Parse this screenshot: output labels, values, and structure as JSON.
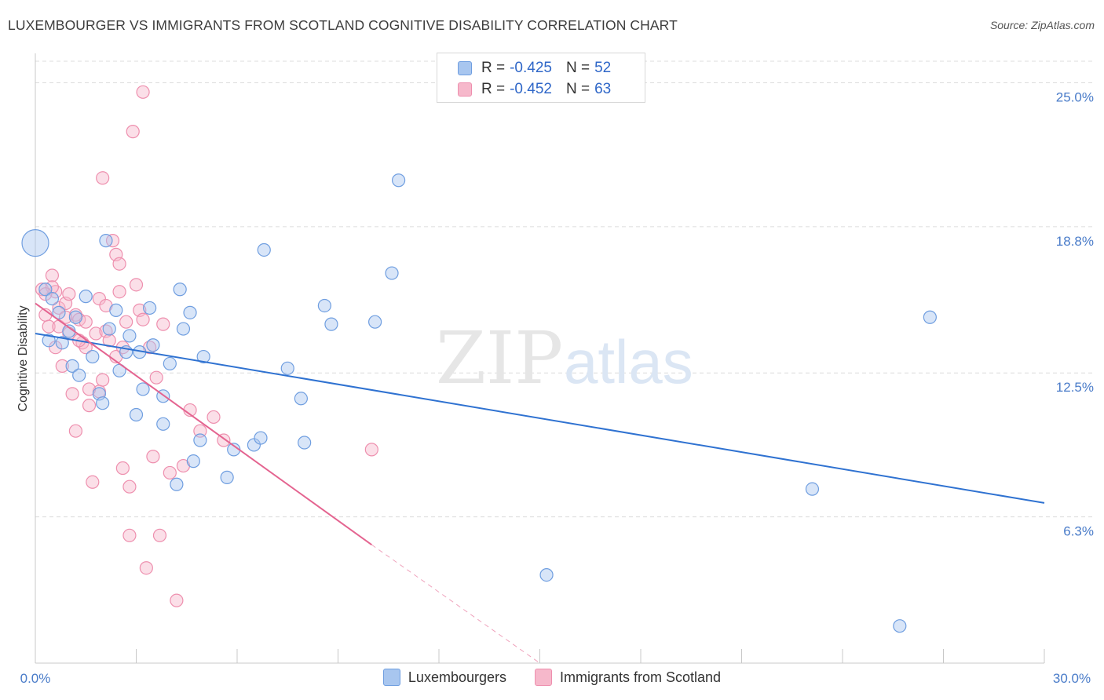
{
  "title": "LUXEMBOURGER VS IMMIGRANTS FROM SCOTLAND COGNITIVE DISABILITY CORRELATION CHART",
  "source": "Source: ZipAtlas.com",
  "watermark": {
    "zip": "ZIP",
    "atlas": "atlas"
  },
  "legend_top": {
    "rows": [
      {
        "r_label": "R =",
        "r_value": "-0.425",
        "n_label": "N =",
        "n_value": "52"
      },
      {
        "r_label": "R =",
        "r_value": "-0.452",
        "n_label": "N =",
        "n_value": "63"
      }
    ]
  },
  "colors": {
    "blue_fill": "#a8c6ef",
    "blue_stroke": "#6f9ee0",
    "blue_line": "#2f72d1",
    "pink_fill": "#f6b8cb",
    "pink_stroke": "#ee8fae",
    "pink_line": "#e46490",
    "grid": "#dcdcdc",
    "axis_text": "#4a7cc9"
  },
  "chart_data": {
    "type": "scatter",
    "title": "LUXEMBOURGER VS IMMIGRANTS FROM SCOTLAND COGNITIVE DISABILITY CORRELATION CHART",
    "xlabel": "",
    "ylabel": "Cognitive Disability",
    "xlim": [
      0,
      30
    ],
    "ylim": [
      0,
      26.2
    ],
    "x_tick_labels": [
      "0.0%",
      "30.0%"
    ],
    "y_ticks": [
      6.3,
      12.5,
      18.8,
      25.0
    ],
    "y_tick_labels": [
      "6.3%",
      "12.5%",
      "18.8%",
      "25.0%"
    ],
    "grid": "horizontal dashed",
    "legend_position": "top-center and bottom",
    "series": [
      {
        "name": "Luxembourgers",
        "r": -0.425,
        "n": 52,
        "trend": {
          "x0": 0.0,
          "y0": 14.2,
          "x1": 30.0,
          "y1": 6.9
        },
        "points": [
          [
            0.0,
            18.1
          ],
          [
            0.3,
            16.1
          ],
          [
            0.5,
            15.7
          ],
          [
            0.4,
            13.9
          ],
          [
            0.7,
            15.1
          ],
          [
            0.8,
            13.8
          ],
          [
            1.0,
            14.3
          ],
          [
            1.1,
            12.8
          ],
          [
            1.3,
            12.4
          ],
          [
            1.5,
            15.8
          ],
          [
            1.7,
            13.2
          ],
          [
            1.9,
            11.6
          ],
          [
            2.0,
            11.2
          ],
          [
            2.1,
            18.2
          ],
          [
            2.2,
            14.4
          ],
          [
            2.4,
            15.2
          ],
          [
            2.5,
            12.6
          ],
          [
            2.7,
            13.4
          ],
          [
            2.8,
            14.1
          ],
          [
            3.0,
            10.7
          ],
          [
            3.1,
            13.4
          ],
          [
            3.2,
            11.8
          ],
          [
            3.4,
            15.3
          ],
          [
            3.8,
            11.5
          ],
          [
            3.8,
            10.3
          ],
          [
            4.0,
            12.9
          ],
          [
            4.2,
            7.7
          ],
          [
            4.3,
            16.1
          ],
          [
            4.4,
            14.4
          ],
          [
            4.6,
            15.1
          ],
          [
            4.7,
            8.7
          ],
          [
            4.9,
            9.6
          ],
          [
            5.0,
            13.2
          ],
          [
            5.7,
            8.0
          ],
          [
            5.9,
            9.2
          ],
          [
            6.5,
            9.4
          ],
          [
            6.7,
            9.7
          ],
          [
            6.8,
            17.8
          ],
          [
            7.5,
            12.7
          ],
          [
            7.9,
            11.4
          ],
          [
            8.0,
            9.5
          ],
          [
            8.6,
            15.4
          ],
          [
            8.8,
            14.6
          ],
          [
            10.1,
            14.7
          ],
          [
            10.6,
            16.8
          ],
          [
            10.8,
            20.8
          ],
          [
            15.2,
            3.8
          ],
          [
            23.1,
            7.5
          ],
          [
            25.7,
            1.6
          ],
          [
            26.6,
            14.9
          ],
          [
            1.2,
            14.9
          ],
          [
            3.5,
            13.7
          ]
        ]
      },
      {
        "name": "Immigrants from Scotland",
        "r": -0.452,
        "n": 63,
        "trend": {
          "x0": 0.0,
          "y0": 15.5,
          "x1": 10.0,
          "y1": 5.1
        },
        "trend_dashed": {
          "x0": 10.0,
          "y0": 5.1,
          "x1": 15.0,
          "y1": 0.0
        },
        "points": [
          [
            0.2,
            16.1
          ],
          [
            0.3,
            15.0
          ],
          [
            0.4,
            14.5
          ],
          [
            0.5,
            16.7
          ],
          [
            0.6,
            16.0
          ],
          [
            0.7,
            15.3
          ],
          [
            0.7,
            14.5
          ],
          [
            0.8,
            12.8
          ],
          [
            0.9,
            15.5
          ],
          [
            1.0,
            15.9
          ],
          [
            1.0,
            14.2
          ],
          [
            1.1,
            11.6
          ],
          [
            1.2,
            15.0
          ],
          [
            1.2,
            10.0
          ],
          [
            1.3,
            14.8
          ],
          [
            1.4,
            13.8
          ],
          [
            1.5,
            14.7
          ],
          [
            1.5,
            13.6
          ],
          [
            1.6,
            11.1
          ],
          [
            1.7,
            7.8
          ],
          [
            1.8,
            14.2
          ],
          [
            1.9,
            15.7
          ],
          [
            1.9,
            11.7
          ],
          [
            2.0,
            20.9
          ],
          [
            2.0,
            12.2
          ],
          [
            2.1,
            14.3
          ],
          [
            2.2,
            13.9
          ],
          [
            2.3,
            18.2
          ],
          [
            2.4,
            17.6
          ],
          [
            2.5,
            17.2
          ],
          [
            2.5,
            16.0
          ],
          [
            2.6,
            8.4
          ],
          [
            2.6,
            13.6
          ],
          [
            2.7,
            14.7
          ],
          [
            2.8,
            5.5
          ],
          [
            2.8,
            7.6
          ],
          [
            2.9,
            22.9
          ],
          [
            3.0,
            16.3
          ],
          [
            3.1,
            15.2
          ],
          [
            3.2,
            14.8
          ],
          [
            3.3,
            4.1
          ],
          [
            3.4,
            13.6
          ],
          [
            3.5,
            8.9
          ],
          [
            3.6,
            12.3
          ],
          [
            3.7,
            5.5
          ],
          [
            3.8,
            14.6
          ],
          [
            4.0,
            8.2
          ],
          [
            4.2,
            2.7
          ],
          [
            4.4,
            8.5
          ],
          [
            4.6,
            10.9
          ],
          [
            4.9,
            10.0
          ],
          [
            5.3,
            10.6
          ],
          [
            5.6,
            9.6
          ],
          [
            10.0,
            9.2
          ],
          [
            3.2,
            24.6
          ],
          [
            0.5,
            16.2
          ],
          [
            1.3,
            13.9
          ],
          [
            2.1,
            15.4
          ],
          [
            0.9,
            14.9
          ],
          [
            0.6,
            13.6
          ],
          [
            1.6,
            11.8
          ],
          [
            0.3,
            15.9
          ],
          [
            2.4,
            13.2
          ]
        ]
      }
    ]
  },
  "legend_bottom": {
    "items": [
      {
        "label": "Luxembourgers"
      },
      {
        "label": "Immigrants from Scotland"
      }
    ]
  }
}
